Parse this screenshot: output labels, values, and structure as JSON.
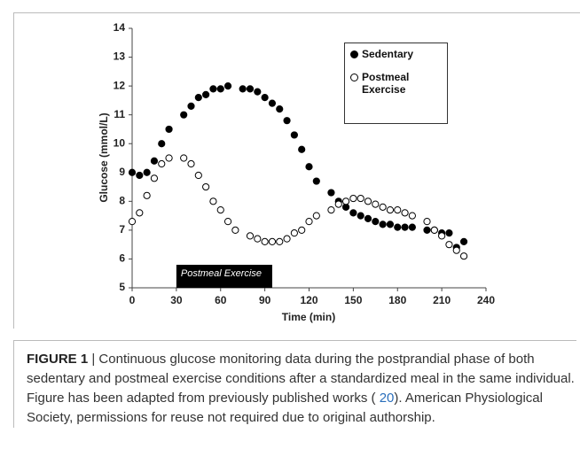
{
  "chart_data": {
    "type": "scatter",
    "x_label": "Time (min)",
    "y_label": "Glucose (mmol/L)",
    "xlim": [
      0,
      240
    ],
    "xticks": [
      0,
      30,
      60,
      90,
      120,
      150,
      180,
      210,
      240
    ],
    "ylim": [
      5,
      14
    ],
    "yticks": [
      5,
      6,
      7,
      8,
      9,
      10,
      11,
      12,
      13,
      14
    ],
    "series": [
      {
        "name": "Sedentary",
        "color": "#000000",
        "filled": true,
        "x": [
          0,
          5,
          10,
          15,
          20,
          25,
          35,
          40,
          45,
          50,
          55,
          60,
          65,
          75,
          80,
          85,
          90,
          95,
          100,
          105,
          110,
          115,
          120,
          125,
          135,
          140,
          145,
          150,
          155,
          160,
          165,
          170,
          175,
          180,
          185,
          190,
          200,
          205,
          210,
          215,
          220,
          225
        ],
        "values": [
          9.0,
          8.9,
          9.0,
          9.4,
          10.0,
          10.5,
          11.0,
          11.3,
          11.6,
          11.7,
          11.9,
          11.9,
          12.0,
          11.9,
          11.9,
          11.8,
          11.6,
          11.4,
          11.2,
          10.8,
          10.3,
          9.8,
          9.2,
          8.7,
          8.3,
          8.0,
          7.8,
          7.6,
          7.5,
          7.4,
          7.3,
          7.2,
          7.2,
          7.1,
          7.1,
          7.1,
          7.0,
          7.0,
          6.9,
          6.9,
          6.4,
          6.6
        ]
      },
      {
        "name": "Postmeal Exercise",
        "color": "#000000",
        "filled": false,
        "x": [
          0,
          5,
          10,
          15,
          20,
          25,
          35,
          40,
          45,
          50,
          55,
          60,
          65,
          70,
          80,
          85,
          90,
          95,
          100,
          105,
          110,
          115,
          120,
          125,
          135,
          140,
          145,
          150,
          155,
          160,
          165,
          170,
          175,
          180,
          185,
          190,
          200,
          205,
          210,
          215,
          220,
          225
        ],
        "values": [
          7.3,
          7.6,
          8.2,
          8.8,
          9.3,
          9.5,
          9.5,
          9.3,
          8.9,
          8.5,
          8.0,
          7.7,
          7.3,
          7.0,
          6.8,
          6.7,
          6.6,
          6.6,
          6.6,
          6.7,
          6.9,
          7.0,
          7.3,
          7.5,
          7.7,
          7.9,
          8.0,
          8.1,
          8.1,
          8.0,
          7.9,
          7.8,
          7.7,
          7.7,
          7.6,
          7.5,
          7.3,
          7.0,
          6.8,
          6.5,
          6.3,
          6.1
        ]
      }
    ],
    "annotation": {
      "text": "Postmeal Exercise",
      "x_start": 30,
      "x_end": 95
    }
  },
  "caption": {
    "label": "FIGURE 1",
    "text_1": "| Continuous glucose monitoring data during the postprandial phase of both sedentary and postmeal exercise conditions after a standardized meal in the same individual. Figure has been adapted from previously published works (",
    "ref": "20",
    "text_2": "). American Physiological Society, permissions for reuse not required due to original authorship."
  }
}
